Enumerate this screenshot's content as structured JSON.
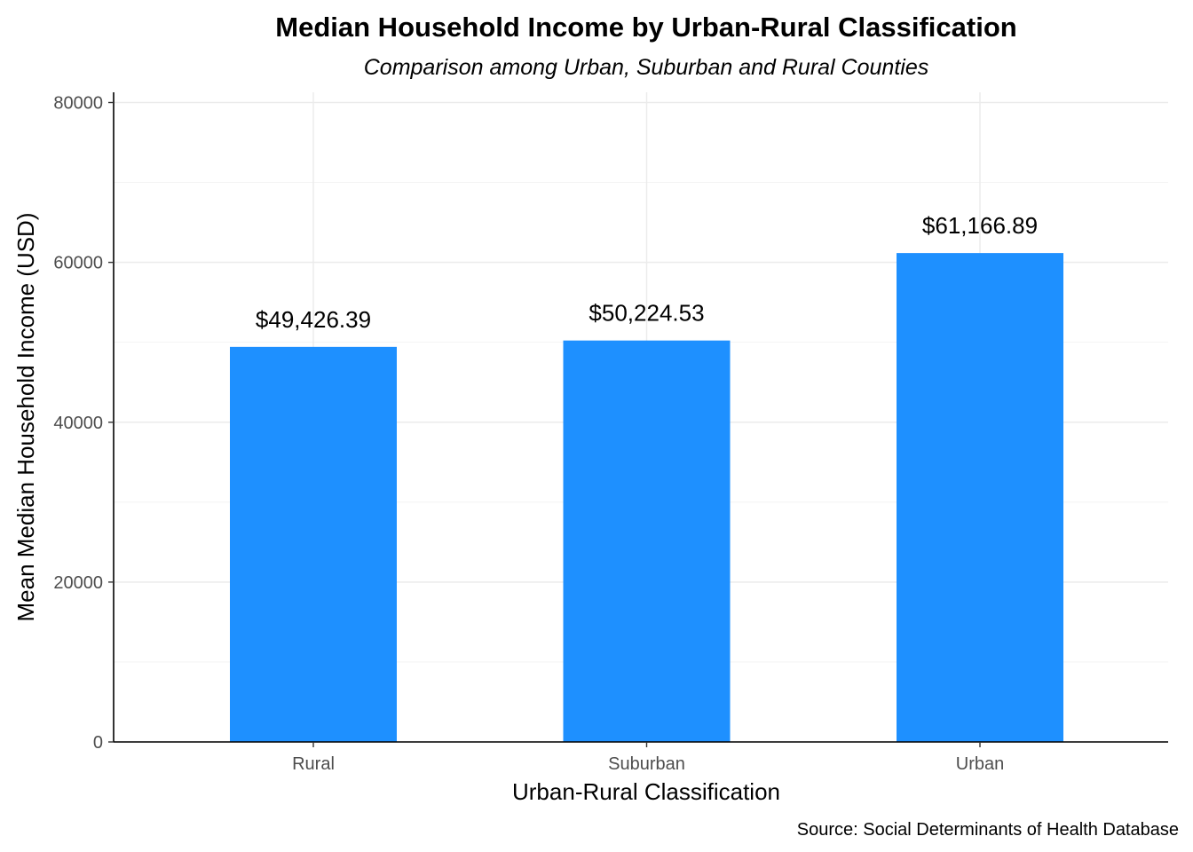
{
  "chart_data": {
    "type": "bar",
    "title": "Median Household Income by Urban-Rural Classification",
    "subtitle": "Comparison among Urban, Suburban and Rural Counties",
    "xlabel": "Urban-Rural Classification",
    "ylabel": "Mean Median Household Income (USD)",
    "caption": "Source: Social Determinants of Health Database",
    "categories": [
      "Rural",
      "Suburban",
      "Urban"
    ],
    "values": [
      49426.39,
      50224.53,
      61166.89
    ],
    "data_labels": [
      "$49,426.39",
      "$50,224.53",
      "$61,166.89"
    ],
    "ylim": [
      0,
      80000
    ],
    "y_ticks": [
      0,
      20000,
      40000,
      60000,
      80000
    ],
    "y_tick_labels": [
      "0",
      "20000",
      "40000",
      "60000",
      "80000"
    ],
    "grid": true,
    "legend": "none",
    "bar_color": "#1E90FF"
  }
}
